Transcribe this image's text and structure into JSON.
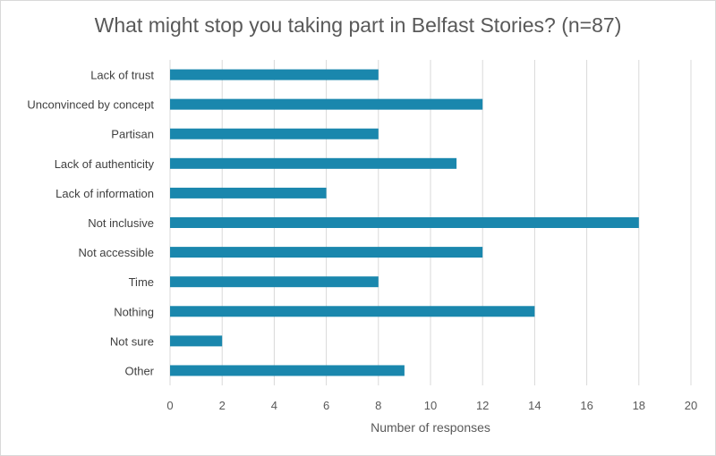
{
  "chart_data": {
    "type": "bar",
    "orientation": "horizontal",
    "title": "What might stop you taking part in Belfast Stories? (n=87)",
    "xlabel": "Number of responses",
    "ylabel": "",
    "categories": [
      "Lack of trust",
      "Unconvinced by concept",
      "Partisan",
      "Lack of authenticity",
      "Lack of information",
      "Not inclusive",
      "Not accessible",
      "Time",
      "Nothing",
      "Not sure",
      "Other"
    ],
    "values": [
      8,
      12,
      8,
      11,
      6,
      18,
      12,
      8,
      14,
      2,
      9
    ],
    "xlim": [
      0,
      20
    ],
    "xticks": [
      0,
      2,
      4,
      6,
      8,
      10,
      12,
      14,
      16,
      18,
      20
    ],
    "grid": "vertical",
    "legend": "none",
    "bar_color": "#1a87ad",
    "grid_color": "#d9d9d9"
  }
}
